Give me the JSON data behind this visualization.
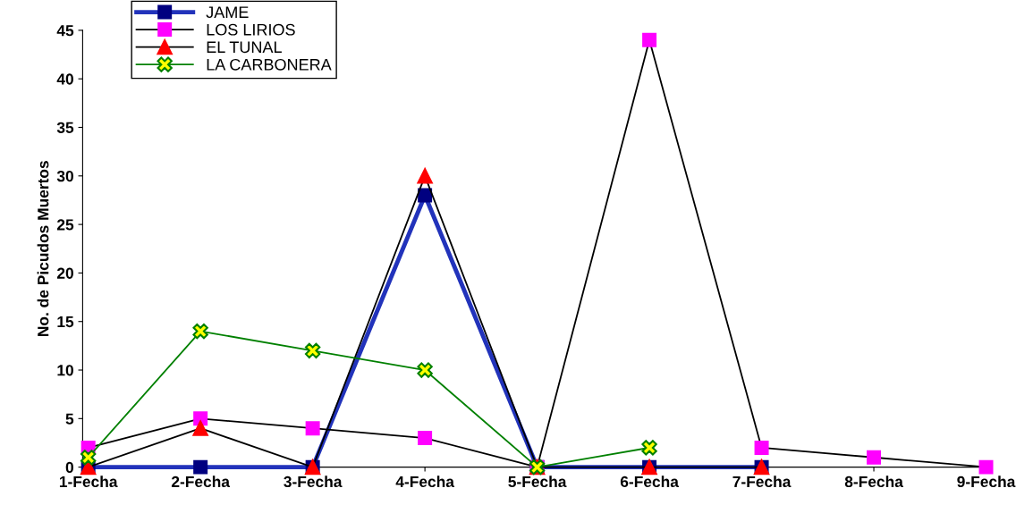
{
  "chart_data": {
    "type": "line",
    "ylabel": "No. de Picudos Muertos",
    "categories": [
      "1-Fecha",
      "2-Fecha",
      "3-Fecha",
      "4-Fecha",
      "5-Fecha",
      "6-Fecha",
      "7-Fecha",
      "8-Fecha",
      "9-Fecha"
    ],
    "ylim": [
      0,
      45
    ],
    "yticks": [
      0,
      5,
      10,
      15,
      20,
      25,
      30,
      35,
      40,
      45
    ],
    "grid": false,
    "legend": "top left",
    "series": [
      {
        "name": "JAME",
        "color": "#2233bb",
        "marker": "square",
        "values": [
          0,
          0,
          0,
          28,
          0,
          0,
          0,
          null,
          null
        ]
      },
      {
        "name": "LOS LIRIOS",
        "color": "#000000",
        "marker": "square",
        "values": [
          2,
          5,
          4,
          3,
          0,
          44,
          2,
          1,
          0
        ]
      },
      {
        "name": "EL TUNAL",
        "color": "#000000",
        "marker": "triangle",
        "values": [
          0,
          4,
          0,
          30,
          0,
          0,
          0,
          null,
          null
        ]
      },
      {
        "name": "LA CARBONERA",
        "color": "#008000",
        "marker": "cross",
        "values": [
          1,
          14,
          12,
          10,
          0,
          2,
          null,
          null,
          null
        ]
      }
    ]
  }
}
